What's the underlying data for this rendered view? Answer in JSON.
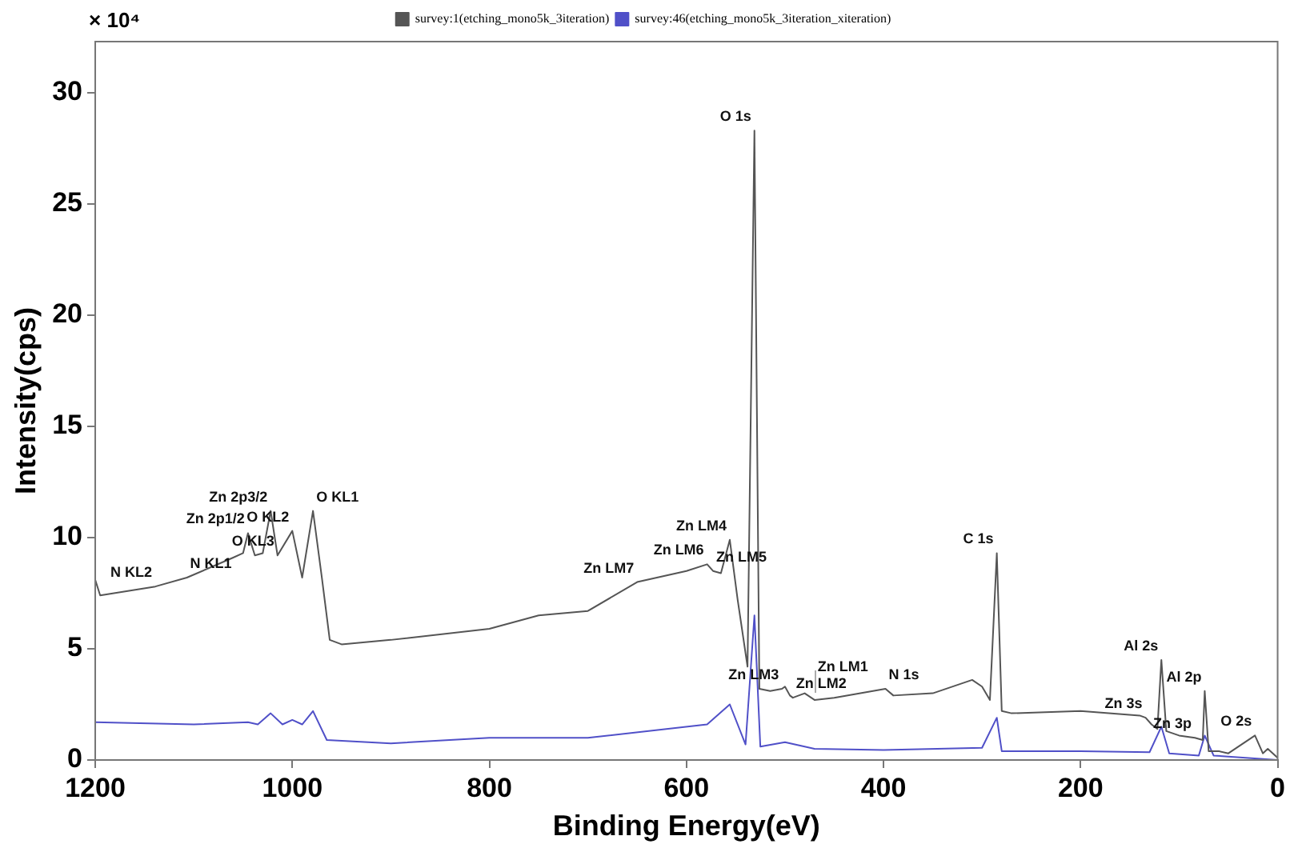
{
  "chart_data": {
    "type": "line",
    "xlabel": "Binding Energy(eV)",
    "ylabel": "Intensity(cps)",
    "legend": "top",
    "grid": false,
    "marker": "none",
    "line_style": "solid",
    "xlim": [
      1200,
      0
    ],
    "xticks": [
      1200,
      1000,
      800,
      600,
      400,
      200,
      0
    ],
    "ylim": [
      0,
      32.3
    ],
    "yticks": [
      0,
      5,
      10,
      15,
      20,
      25,
      30
    ],
    "series": [
      {
        "name": "survey:1(etching_mono5k_3iteration)",
        "color": "#555555",
        "x": [
          1200,
          1195,
          1139,
          1107,
          1060,
          1050,
          1045,
          1038,
          1030,
          1022,
          1015,
          1000,
          990,
          979,
          970,
          962,
          950,
          900,
          800,
          750,
          700,
          650,
          600,
          579,
          573,
          565,
          556,
          548,
          538,
          531,
          526,
          515,
          503,
          500,
          495,
          492,
          480,
          470,
          450,
          398,
          390,
          350,
          310,
          300,
          292,
          285,
          280,
          270,
          200,
          140,
          134,
          128,
          122,
          118,
          113,
          100,
          84,
          76,
          74,
          70,
          60,
          50,
          23,
          15,
          10,
          0
        ],
        "values": [
          8.1,
          7.4,
          7.8,
          8.2,
          9.1,
          9.3,
          10.2,
          9.2,
          9.3,
          11.2,
          9.2,
          10.3,
          8.2,
          11.2,
          8.2,
          5.4,
          5.2,
          5.4,
          5.9,
          6.5,
          6.7,
          8.0,
          8.5,
          8.8,
          8.5,
          8.4,
          9.9,
          7.2,
          4.2,
          28.3,
          3.2,
          3.1,
          3.2,
          3.3,
          2.9,
          2.8,
          3.0,
          2.7,
          2.8,
          3.2,
          2.9,
          3.0,
          3.6,
          3.3,
          2.7,
          9.3,
          2.2,
          2.1,
          2.2,
          2.0,
          1.9,
          1.6,
          1.4,
          4.5,
          1.3,
          1.1,
          1.0,
          0.9,
          3.1,
          0.4,
          0.4,
          0.3,
          1.1,
          0.3,
          0.5,
          0.1
        ]
      },
      {
        "name": "survey:46(etching_mono5k_3iteration_xiteration)",
        "color": "#5050c8",
        "x": [
          1200,
          1100,
          1045,
          1035,
          1022,
          1010,
          1000,
          990,
          979,
          965,
          900,
          800,
          700,
          579,
          556,
          540,
          531,
          525,
          500,
          470,
          400,
          300,
          285,
          280,
          200,
          130,
          118,
          110,
          80,
          74,
          65,
          0
        ],
        "values": [
          1.7,
          1.6,
          1.7,
          1.6,
          2.1,
          1.6,
          1.8,
          1.6,
          2.2,
          0.9,
          0.75,
          1.0,
          1.0,
          1.6,
          2.5,
          0.7,
          6.5,
          0.6,
          0.8,
          0.5,
          0.45,
          0.55,
          1.9,
          0.4,
          0.4,
          0.35,
          1.5,
          0.3,
          0.2,
          1.1,
          0.2,
          0.0
        ]
      }
    ],
    "annotations": [
      "× 10⁴",
      {
        "text": "N KL2",
        "x": 1139,
        "y": 7.8
      },
      {
        "text": "N KL1",
        "x": 1107,
        "y": 8.2
      },
      {
        "text": "Zn 2p1/2",
        "x": 1045,
        "y": 10.2
      },
      {
        "text": "Zn 2p3/2",
        "x": 1022,
        "y": 11.2
      },
      {
        "text": "O KL3",
        "x": 1015,
        "y": 9.2
      },
      {
        "text": "O KL2",
        "x": 1000,
        "y": 10.3
      },
      {
        "text": "O KL1",
        "x": 979,
        "y": 11.2
      },
      {
        "text": "Zn LM7",
        "x": 650,
        "y": 8.0
      },
      {
        "text": "Zn LM6",
        "x": 579,
        "y": 8.8
      },
      {
        "text": "Zn LM5",
        "x": 573,
        "y": 8.5
      },
      {
        "text": "Zn LM4",
        "x": 556,
        "y": 9.9
      },
      {
        "text": "O 1s",
        "x": 531,
        "y": 28.3
      },
      {
        "text": "Zn LM3",
        "x": 503,
        "y": 3.2
      },
      {
        "text": "Zn LM2",
        "x": 492,
        "y": 2.8
      },
      {
        "text": "Zn LM1",
        "x": 470,
        "y": 2.7
      },
      {
        "text": "N 1s",
        "x": 398,
        "y": 3.2
      },
      {
        "text": "C 1s",
        "x": 285,
        "y": 9.3
      },
      {
        "text": "Zn 3s",
        "x": 134,
        "y": 1.9
      },
      {
        "text": "Al 2s",
        "x": 118,
        "y": 4.5
      },
      {
        "text": "Zn 3p",
        "x": 84,
        "y": 1.0
      },
      {
        "text": "Al 2p",
        "x": 74,
        "y": 3.1
      },
      {
        "text": "O 2s",
        "x": 23,
        "y": 1.1
      }
    ]
  }
}
